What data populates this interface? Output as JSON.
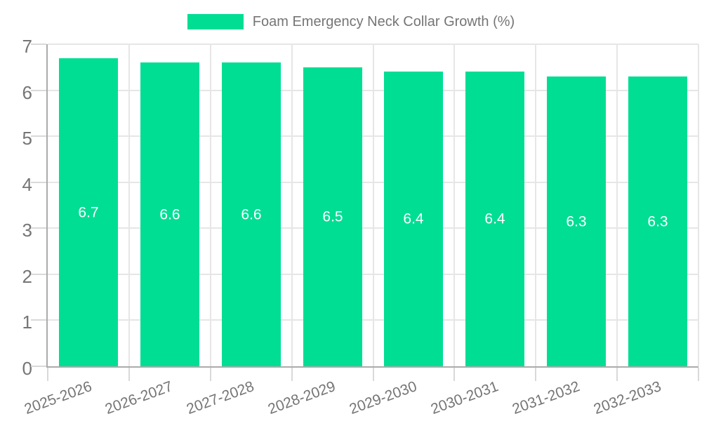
{
  "chart_data": {
    "type": "bar",
    "categories": [
      "2025-2026",
      "2026-2027",
      "2027-2028",
      "2028-2029",
      "2029-2030",
      "2030-2031",
      "2031-2032",
      "2032-2033"
    ],
    "series": [
      {
        "name": "Foam Emergency Neck Collar Growth (%)",
        "values": [
          6.7,
          6.6,
          6.6,
          6.5,
          6.4,
          6.4,
          6.3,
          6.3
        ]
      }
    ],
    "value_labels": [
      "6.7",
      "6.6",
      "6.6",
      "6.5",
      "6.4",
      "6.4",
      "6.3",
      "6.3"
    ],
    "xlabel": "",
    "ylabel": "",
    "ylim": [
      0,
      7
    ],
    "yticks": [
      0,
      1,
      2,
      3,
      4,
      5,
      6,
      7
    ],
    "ytick_labels": [
      "0",
      "1",
      "2",
      "3",
      "4",
      "5",
      "6",
      "7"
    ],
    "grid": "on",
    "legend": {
      "position": "top"
    },
    "colors": {
      "bar": "#00DE94",
      "grid": "#e6e6e6",
      "axis": "#ababab",
      "tick": "#d9d9d9",
      "text": "#757575",
      "bar_label": "#ffffff",
      "background": "#ffffff"
    }
  }
}
